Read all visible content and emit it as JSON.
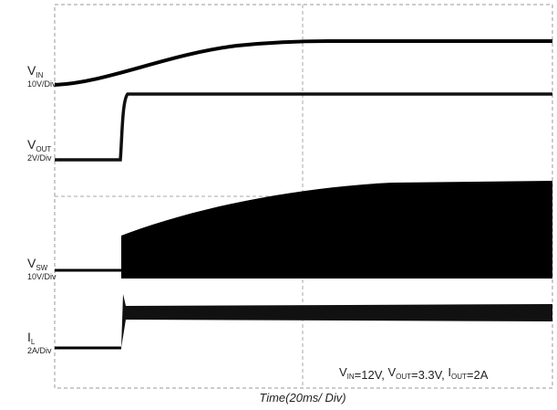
{
  "channels": [
    {
      "symbol": "V",
      "subscript": "IN",
      "scale": "10V/Div"
    },
    {
      "symbol": "V",
      "subscript": "OUT",
      "scale": "2V/Div"
    },
    {
      "symbol": "V",
      "subscript": "SW",
      "scale": "10V/Div"
    },
    {
      "symbol": "I",
      "subscript": "L",
      "scale": "2A/Div"
    }
  ],
  "conditions": [
    {
      "symbol": "V",
      "subscript": "IN",
      "text": "=12V, "
    },
    {
      "symbol": "V",
      "subscript": "OUT",
      "text": "=3.3V, "
    },
    {
      "symbol": "I",
      "subscript": "OUT",
      "text": "=2A"
    }
  ],
  "x_axis_label": "Time(20ms/ Div)"
}
